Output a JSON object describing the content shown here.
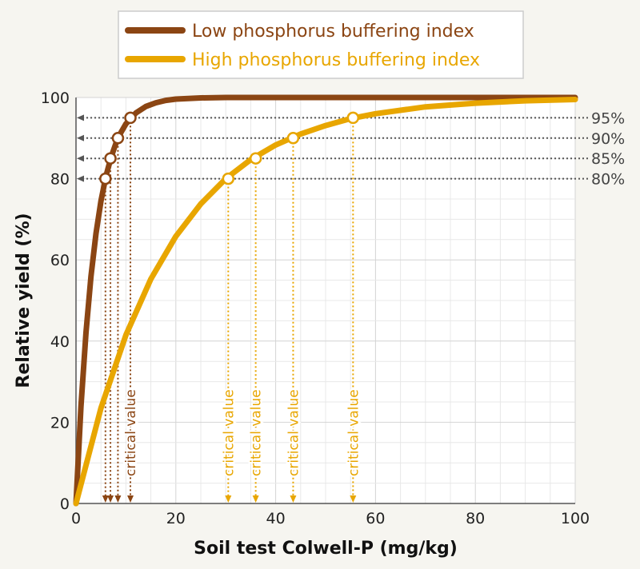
{
  "chart_data": {
    "type": "line",
    "xlabel": "Soil test Colwell-P (mg/kg)",
    "ylabel": "Relative yield (%)",
    "xlim": [
      0,
      100
    ],
    "ylim": [
      0,
      100
    ],
    "x_ticks": [
      0,
      20,
      40,
      60,
      80,
      100
    ],
    "y_ticks": [
      0,
      20,
      40,
      60,
      80,
      100
    ],
    "x_minor_grid_step": 5,
    "y_minor_grid_step": 5,
    "grid": true,
    "legend_position": "top",
    "series": [
      {
        "name": "Low phosphorus buffering index",
        "color": "#8B4513",
        "x": [
          0,
          1,
          2,
          3,
          4,
          5,
          6,
          7,
          8,
          9,
          10,
          12,
          14,
          16,
          18,
          20,
          25,
          30,
          40,
          60,
          80,
          100
        ],
        "y": [
          0,
          23.9,
          42.1,
          55.9,
          66.5,
          74.5,
          80.6,
          85.2,
          88.7,
          91.4,
          93.5,
          96.2,
          97.8,
          98.7,
          99.3,
          99.6,
          99.9,
          100,
          100,
          100,
          100,
          100
        ],
        "critical_points": [
          {
            "level": 80,
            "x": 5.9
          },
          {
            "level": 85,
            "x": 6.9
          },
          {
            "level": 90,
            "x": 8.4
          },
          {
            "level": 95,
            "x": 10.9
          }
        ]
      },
      {
        "name": "High phosphorus buffering index",
        "color": "#E8A600",
        "x": [
          0,
          5,
          10,
          15,
          20,
          25,
          30,
          35,
          40,
          45,
          50,
          55,
          60,
          70,
          80,
          90,
          100
        ],
        "y": [
          0,
          23.5,
          41.5,
          55.3,
          65.8,
          73.8,
          80.0,
          84.7,
          88.3,
          91.0,
          93.1,
          94.8,
          96.0,
          97.7,
          98.6,
          99.2,
          99.5
        ],
        "critical_points": [
          {
            "level": 80,
            "x": 30.5
          },
          {
            "level": 85,
            "x": 36
          },
          {
            "level": 90,
            "x": 43.5
          },
          {
            "level": 95,
            "x": 55.5
          }
        ]
      }
    ],
    "reference_levels": [
      {
        "y": 95,
        "label": "95%"
      },
      {
        "y": 90,
        "label": "90%"
      },
      {
        "y": 85,
        "label": "85%"
      },
      {
        "y": 80,
        "label": "80%"
      }
    ],
    "annotation_text": "critical value"
  }
}
